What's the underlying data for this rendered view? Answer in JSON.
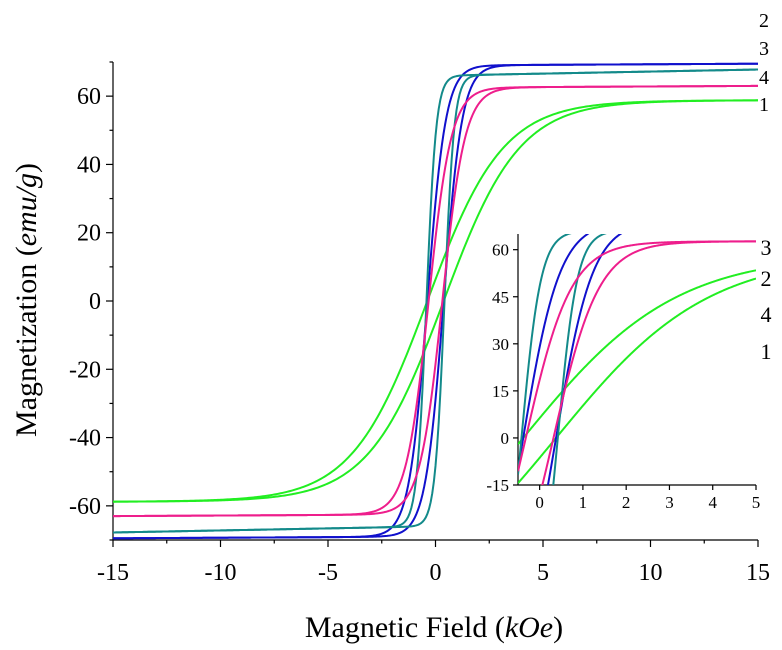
{
  "chart_data": [
    {
      "type": "line",
      "title": "",
      "xlabel_main": "Magnetic Field (",
      "xlabel_unit": "kOe",
      "xlabel_end": ")",
      "ylabel_main": "Magnetization (",
      "ylabel_unit": "emu/g",
      "ylabel_end": ")",
      "xlim": [
        -15,
        15
      ],
      "ylim": [
        -70,
        70
      ],
      "xticks": [
        -15,
        -10,
        -5,
        0,
        5,
        10,
        15
      ],
      "yticks": [
        -60,
        -40,
        -20,
        0,
        20,
        40,
        60
      ],
      "grid": false,
      "series": [
        {
          "label": "1",
          "color": "#22ee22",
          "ms": 58.5,
          "hc": 0.38,
          "a": 3.5,
          "mend": 58.8
        },
        {
          "label": "2",
          "color": "#1010cc",
          "ms": 69.0,
          "hc": 0.38,
          "a": 0.85,
          "mend": 69.5
        },
        {
          "label": "3",
          "color": "#138a8a",
          "ms": 66.0,
          "hc": 0.42,
          "a": 0.45,
          "mend": 67.8
        },
        {
          "label": "4",
          "color": "#ee1e8c",
          "ms": 62.5,
          "hc": 0.32,
          "a": 1.05,
          "mend": 63.0
        }
      ],
      "labels_order_right": [
        "2",
        "3",
        "4",
        "1"
      ]
    },
    {
      "type": "line",
      "role": "inset",
      "xlim": [
        -0.5,
        5
      ],
      "ylim": [
        -15,
        65
      ],
      "xticks": [
        0,
        1,
        2,
        3,
        4,
        5
      ],
      "yticks": [
        -15,
        0,
        15,
        30,
        45,
        60
      ],
      "labels_order_right": [
        "3",
        "2",
        "4",
        "1"
      ]
    }
  ]
}
